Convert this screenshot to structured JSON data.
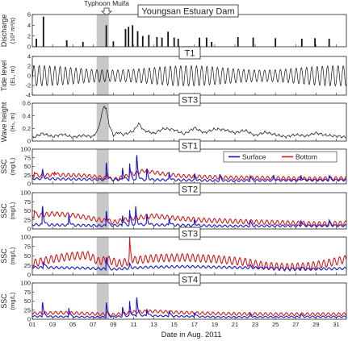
{
  "figure": {
    "typhoon_label": "Typhoon Muifa",
    "typhoon_span_days": [
      7.35,
      8.55
    ],
    "xlabel": "Date in Aug. 2011",
    "x_ticks": [
      "01",
      "03",
      "05",
      "07",
      "09",
      "11",
      "13",
      "15",
      "17",
      "19",
      "21",
      "23",
      "25",
      "27",
      "29",
      "31"
    ],
    "x_range_days": [
      1,
      32
    ]
  },
  "chart_data": [
    {
      "type": "bar",
      "title": "Youngsan Estuary Dam",
      "ylabel": [
        "Discharge",
        "(10³ m³/s)"
      ],
      "ylim": [
        0,
        6
      ],
      "yticks": [
        "0",
        "2",
        "4",
        "6"
      ],
      "x_day": [
        1.4,
        2.1,
        4.4,
        6.0,
        8.3,
        9.0,
        10.2,
        10.5,
        10.9,
        11.4,
        11.9,
        12.5,
        13.3,
        13.8,
        14.4,
        15.0,
        15.4,
        17.5,
        18.2,
        18.7,
        21.3,
        22.8,
        25.0,
        27.6,
        28.9,
        30.3
      ],
      "values": [
        1.5,
        5.6,
        1.2,
        0.9,
        4.0,
        1.0,
        3.3,
        3.7,
        4.0,
        2.9,
        2.0,
        2.2,
        1.8,
        1.7,
        2.8,
        1.7,
        1.5,
        1.7,
        1.7,
        0.9,
        1.8,
        1.7,
        1.6,
        1.5,
        1.6,
        1.5
      ]
    },
    {
      "type": "line",
      "title": "T1",
      "ylabel": [
        "Tide level",
        "(EL, m)"
      ],
      "ylim": [
        -4,
        4
      ],
      "yticks": [
        "-4",
        "-2",
        "0",
        "2",
        "4"
      ],
      "series": [
        {
          "period_days": 0.5175,
          "amplitude_m": [
            1.2,
            2.1
          ],
          "spring_neap_period_days": 14.8,
          "color": "#111111"
        }
      ]
    },
    {
      "type": "line",
      "title": "ST3",
      "ylabel": [
        "Wave height",
        "(Hₛ, m)"
      ],
      "ylim": [
        0,
        0.6
      ],
      "yticks": [
        "0",
        "0.2",
        "0.4",
        "0.6"
      ],
      "series": [
        {
          "color": "#111111",
          "x": [
            1,
            2,
            3,
            4,
            5,
            6,
            7,
            7.5,
            7.9,
            8.1,
            8.3,
            8.6,
            9,
            9.5,
            10,
            11,
            11.5,
            12,
            13,
            14,
            15,
            16,
            17,
            18,
            19,
            20,
            21,
            22,
            23,
            24,
            25,
            26,
            27,
            28,
            29,
            30,
            31,
            32
          ],
          "y": [
            0.05,
            0.12,
            0.07,
            0.11,
            0.06,
            0.09,
            0.07,
            0.18,
            0.45,
            0.57,
            0.5,
            0.25,
            0.09,
            0.14,
            0.1,
            0.16,
            0.28,
            0.17,
            0.12,
            0.2,
            0.18,
            0.11,
            0.21,
            0.13,
            0.19,
            0.18,
            0.13,
            0.17,
            0.09,
            0.14,
            0.1,
            0.07,
            0.1,
            0.08,
            0.13,
            0.09,
            0.08,
            0.06
          ]
        }
      ]
    },
    {
      "type": "line",
      "title": "ST1",
      "ylabel": [
        "SSC",
        "(mg/L)"
      ],
      "ylim": [
        0,
        100
      ],
      "yticks": [
        "0",
        "25",
        "50",
        "75",
        "100"
      ],
      "legend": {
        "placement": "top-right",
        "entries": [
          "Surface",
          "Bottom"
        ]
      },
      "series": [
        {
          "name": "Surface",
          "color": "#1515c8",
          "base": [
            [
              1,
              15
            ],
            [
              8,
              12
            ],
            [
              12,
              12
            ],
            [
              20,
              9
            ],
            [
              32,
              11
            ]
          ],
          "osc_amp": 3,
          "spikes": [
            [
              2.0,
              28
            ],
            [
              8.3,
              58
            ],
            [
              9.9,
              38
            ],
            [
              10.6,
              48
            ],
            [
              11.3,
              80
            ],
            [
              12.3,
              32
            ],
            [
              14.5,
              22
            ],
            [
              17.0,
              18
            ],
            [
              19.5,
              18
            ],
            [
              22.5,
              16
            ],
            [
              24.8,
              15
            ],
            [
              27.5,
              18
            ],
            [
              30.3,
              14
            ]
          ]
        },
        {
          "name": "Bottom",
          "color": "#d61a1a",
          "base": [
            [
              1,
              22
            ],
            [
              3,
              26
            ],
            [
              6,
              24
            ],
            [
              8,
              18
            ],
            [
              9,
              12
            ],
            [
              11,
              28
            ],
            [
              12,
              38
            ],
            [
              14,
              28
            ],
            [
              16,
              22
            ],
            [
              20,
              18
            ],
            [
              24,
              17
            ],
            [
              28,
              15
            ],
            [
              32,
              16
            ]
          ],
          "osc_amp": 5,
          "spikes": [
            [
              1.2,
              18
            ],
            [
              3.2,
              14
            ],
            [
              8.3,
              18
            ],
            [
              10.6,
              14
            ]
          ]
        }
      ]
    },
    {
      "type": "line",
      "title": "ST2",
      "ylabel": [
        "SSC",
        "(mg/L)"
      ],
      "ylim": [
        0,
        100
      ],
      "yticks": [
        "0",
        "25",
        "50",
        "75",
        "100"
      ],
      "series": [
        {
          "name": "Surface",
          "color": "#1515c8",
          "base": [
            [
              1,
              12
            ],
            [
              8,
              9
            ],
            [
              12,
              12
            ],
            [
              20,
              8
            ],
            [
              32,
              9
            ]
          ],
          "osc_amp": 3,
          "spikes": [
            [
              2.0,
              60
            ],
            [
              4.6,
              30
            ],
            [
              8.3,
              50
            ],
            [
              9.9,
              32
            ],
            [
              10.6,
              40
            ],
            [
              11.2,
              48
            ],
            [
              12.3,
              30
            ],
            [
              14.5,
              20
            ],
            [
              17.0,
              18
            ],
            [
              22.5,
              16
            ],
            [
              27.5,
              20
            ],
            [
              30.3,
              14
            ]
          ]
        },
        {
          "name": "Bottom",
          "color": "#d61a1a",
          "base": [
            [
              1,
              35
            ],
            [
              3,
              42
            ],
            [
              5,
              38
            ],
            [
              7,
              28
            ],
            [
              9,
              18
            ],
            [
              11,
              30
            ],
            [
              13,
              36
            ],
            [
              15,
              30
            ],
            [
              18,
              24
            ],
            [
              22,
              20
            ],
            [
              26,
              17
            ],
            [
              29,
              14
            ],
            [
              32,
              16
            ]
          ],
          "osc_amp": 6,
          "spikes": [
            [
              1.2,
              18
            ],
            [
              8.3,
              20
            ]
          ]
        }
      ]
    },
    {
      "type": "line",
      "title": "ST3",
      "ylabel": [
        "SSC",
        "(mg/L)"
      ],
      "ylim": [
        0,
        100
      ],
      "yticks": [
        "0",
        "25",
        "50",
        "75",
        "100"
      ],
      "series": [
        {
          "name": "Surface",
          "color": "#1515c8",
          "base": [
            [
              1,
              20
            ],
            [
              6,
              18
            ],
            [
              9,
              15
            ],
            [
              12,
              20
            ],
            [
              16,
              22
            ],
            [
              20,
              20
            ],
            [
              24,
              18
            ],
            [
              28,
              15
            ],
            [
              32,
              17
            ]
          ],
          "osc_amp": 3,
          "spikes": [
            [
              2.1,
              20
            ],
            [
              8.3,
              40
            ],
            [
              10.6,
              12
            ],
            [
              22.5,
              6
            ],
            [
              27.5,
              8
            ]
          ]
        },
        {
          "name": "Bottom",
          "color": "#d61a1a",
          "base": [
            [
              1,
              30
            ],
            [
              3,
              42
            ],
            [
              5,
              50
            ],
            [
              6.5,
              52
            ],
            [
              7.5,
              36
            ],
            [
              8.5,
              40
            ],
            [
              9.5,
              30
            ],
            [
              11,
              38
            ],
            [
              13,
              44
            ],
            [
              16,
              46
            ],
            [
              19,
              42
            ],
            [
              22,
              34
            ],
            [
              24,
              24
            ],
            [
              26,
              20
            ],
            [
              28,
              22
            ],
            [
              30,
              30
            ],
            [
              32,
              42
            ]
          ],
          "osc_amp": 10,
          "spikes": [
            [
              10.6,
              55
            ]
          ]
        }
      ]
    },
    {
      "type": "line",
      "title": "ST4",
      "ylabel": [
        "SSC",
        "(mg/L)"
      ],
      "ylim": [
        0,
        100
      ],
      "yticks": [
        "0",
        "25",
        "50",
        "75",
        "100"
      ],
      "series": [
        {
          "name": "Surface",
          "color": "#1515c8",
          "base": [
            [
              1,
              8
            ],
            [
              8,
              6
            ],
            [
              12,
              10
            ],
            [
              20,
              6
            ],
            [
              32,
              7
            ]
          ],
          "osc_amp": 2,
          "spikes": [
            [
              2.0,
              48
            ],
            [
              4.6,
              26
            ],
            [
              8.3,
              48
            ],
            [
              9.9,
              28
            ],
            [
              10.6,
              40
            ],
            [
              11.3,
              62
            ],
            [
              12.3,
              22
            ],
            [
              14.5,
              16
            ],
            [
              17.0,
              14
            ],
            [
              22.5,
              10
            ],
            [
              27.5,
              10
            ]
          ]
        },
        {
          "name": "Bottom",
          "color": "#d61a1a",
          "base": [
            [
              1,
              16
            ],
            [
              4,
              18
            ],
            [
              7,
              15
            ],
            [
              9,
              12
            ],
            [
              11,
              20
            ],
            [
              13,
              22
            ],
            [
              16,
              18
            ],
            [
              20,
              15
            ],
            [
              26,
              14
            ],
            [
              32,
              14
            ]
          ],
          "osc_amp": 4,
          "spikes": [
            [
              8.3,
              10
            ]
          ]
        }
      ]
    }
  ]
}
